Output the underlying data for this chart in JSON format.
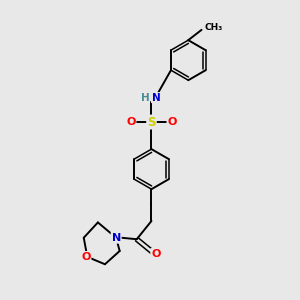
{
  "bg_color": "#e8e8e8",
  "bond_color": "#000000",
  "atom_colors": {
    "N": "#0000cc",
    "O": "#ff0000",
    "S": "#cccc00",
    "H": "#4a9090",
    "C": "#000000"
  },
  "figsize": [
    3.0,
    3.0
  ],
  "dpi": 100
}
